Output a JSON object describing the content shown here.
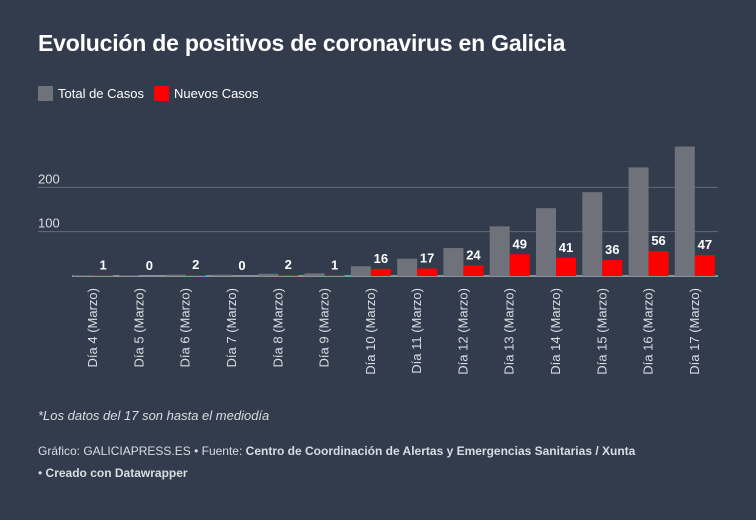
{
  "title": "Evolución de positivos de coronavirus en Galicia",
  "legend": [
    {
      "label": "Total de Casos",
      "color": "#6f727a"
    },
    {
      "label": "Nuevos Casos",
      "color": "#ff0000"
    }
  ],
  "note": "*Los datos del 17 son hasta el mediodía",
  "credits": {
    "chart_label": "Gráfico: GALICIAPRESS.ES",
    "separator": "•",
    "source_label": "Fuente:",
    "source": "Centro de Coordinación de Alertas y Emergencias Sanitarias / Xunta",
    "made_with": "Creado con Datawrapper"
  },
  "chart_data": {
    "type": "bar",
    "categories": [
      "Día 4 (Marzo)",
      "Día 5 (Marzo)",
      "Día 6 (Marzo)",
      "Día 7 (Marzo)",
      "Día 8 (Marzo)",
      "Día 9 (Marzo)",
      "Día 10 (Marzo)",
      "Día 11 (Marzo)",
      "Día 12 (Marzo)",
      "Día 13 (Marzo)",
      "Día 14 (Marzo)",
      "Día 15 (Marzo)",
      "Día 16 (Marzo)",
      "Día 17 (Marzo)"
    ],
    "series": [
      {
        "name": "Total de Casos",
        "color": "#6f727a",
        "values": [
          1,
          1,
          3,
          3,
          5,
          6,
          22,
          39,
          63,
          112,
          153,
          189,
          245,
          292
        ]
      },
      {
        "name": "Nuevos Casos",
        "color": "#ff0000",
        "values": [
          1,
          0,
          2,
          0,
          2,
          1,
          16,
          17,
          24,
          49,
          41,
          36,
          56,
          47
        ]
      }
    ],
    "data_labels_series": "Nuevos Casos",
    "y_ticks": [
      100,
      200
    ],
    "ylim": [
      0,
      300
    ],
    "grid": true,
    "legend_position": "top-left"
  }
}
